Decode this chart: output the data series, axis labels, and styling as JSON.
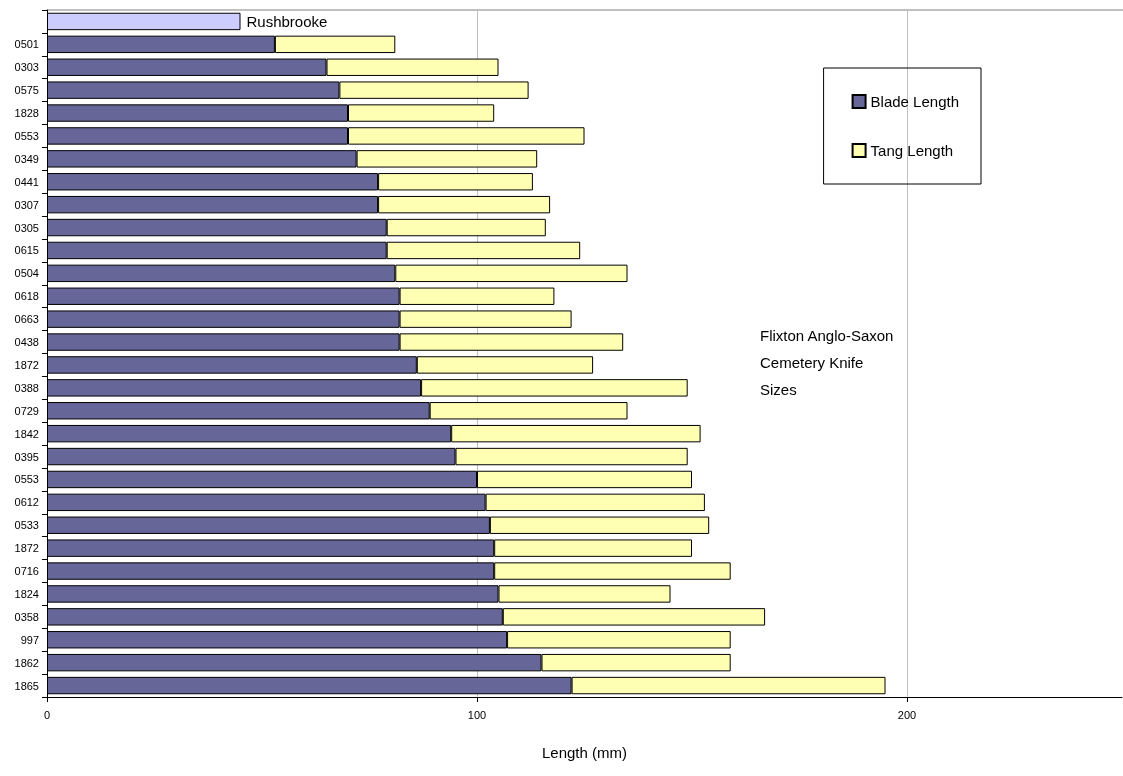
{
  "chart_data": {
    "type": "bar",
    "orientation": "horizontal",
    "stacked": true,
    "xlabel": "Length (mm)",
    "annotations": [
      "Flixton Anglo-Saxon Cemetery Knife Sizes"
    ],
    "categories": [
      null,
      "0501",
      "0303",
      "0575",
      "1828",
      "0553",
      "0349",
      "0441",
      "0307",
      "0305",
      "0615",
      "0504",
      "0618",
      "0663",
      "0438",
      "1872",
      "0388",
      "0729",
      "1842",
      "0395",
      "0553",
      "0612",
      "0533",
      "1872",
      "0716",
      "1824",
      "0358",
      "997",
      "1862",
      "1865"
    ],
    "series": [
      {
        "name": "Rushbrooke",
        "color": "#ccccff",
        "values": [
          45,
          null,
          null,
          null,
          null,
          null,
          null,
          null,
          null,
          null,
          null,
          null,
          null,
          null,
          null,
          null,
          null,
          null,
          null,
          null,
          null,
          null,
          null,
          null,
          null,
          null,
          null,
          null,
          null,
          null
        ]
      },
      {
        "name": "Blade Length",
        "color": "#666699",
        "values": [
          null,
          53,
          65,
          68,
          70,
          70,
          72,
          77,
          77,
          79,
          79,
          81,
          82,
          82,
          82,
          86,
          87,
          89,
          94,
          95,
          100,
          102,
          103,
          104,
          104,
          105,
          106,
          107,
          115,
          122
        ]
      },
      {
        "name": "Tang Length",
        "color": "#ffffb3",
        "values": [
          null,
          28,
          40,
          44,
          34,
          55,
          42,
          36,
          40,
          37,
          45,
          54,
          36,
          40,
          52,
          41,
          62,
          46,
          58,
          54,
          50,
          51,
          51,
          46,
          55,
          40,
          61,
          52,
          44,
          73
        ]
      }
    ],
    "xlim": [
      0,
      250
    ],
    "xticks": [
      0,
      100,
      200
    ],
    "grid": "x",
    "legend": "top right"
  }
}
